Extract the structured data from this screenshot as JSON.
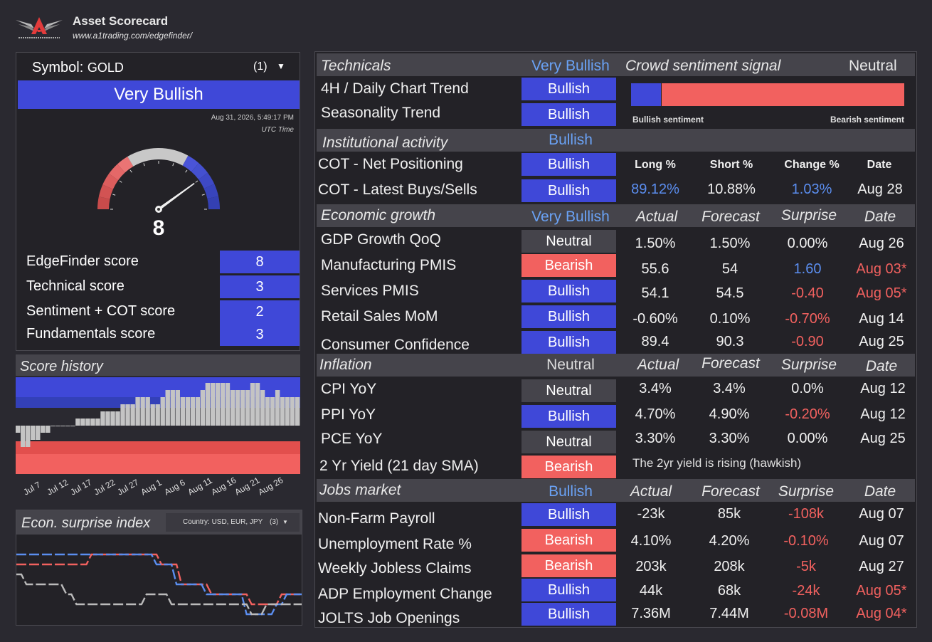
{
  "header": {
    "title": "Asset Scorecard",
    "url": "www.a1trading.com/edgefinder/"
  },
  "symbol": {
    "label": "Symbol:",
    "value": "GOLD",
    "count": "(1)",
    "overall": "Very Bullish",
    "timestamp": "Aug 31, 2026, 5:49:17 PM",
    "timezone": "UTC Time",
    "gauge_value": "8",
    "gauge_min": 0,
    "gauge_max": 10,
    "scores": [
      {
        "label": "EdgeFinder score",
        "value": "8"
      },
      {
        "label": "Technical score",
        "value": "3"
      },
      {
        "label": "Sentiment + COT score",
        "value": "2"
      },
      {
        "label": "Fundamentals score",
        "value": "3"
      }
    ]
  },
  "score_history": {
    "title": "Score history",
    "dates": [
      "Jul 7",
      "Jul 12",
      "Jul 17",
      "Jul 22",
      "Jul 27",
      "Aug 1",
      "Aug 6",
      "Aug 11",
      "Aug 16",
      "Aug 21",
      "Aug 26"
    ],
    "values": [
      -1,
      -3,
      -3,
      -2,
      -2,
      -1,
      -1,
      0,
      0,
      0,
      0,
      0,
      1,
      1,
      1,
      1,
      1,
      2,
      2,
      2,
      2,
      3,
      3,
      3,
      4,
      4,
      4,
      3,
      3,
      4,
      5,
      5,
      5,
      4,
      4,
      4,
      4,
      5,
      6,
      6,
      6,
      6,
      6,
      5,
      5,
      5,
      5,
      6,
      6,
      5,
      4,
      4,
      5,
      4,
      4,
      4,
      4
    ]
  },
  "econ_surprise": {
    "title": "Econ. surprise index",
    "country_label": "Country: USD, EUR, JPY",
    "country_count": "(3)",
    "series": [
      {
        "color": "#f2615f",
        "values": [
          5,
          5,
          5,
          5,
          5,
          5,
          5,
          5,
          5,
          5,
          5,
          5,
          5,
          5,
          5,
          6,
          6,
          6,
          6,
          6,
          6,
          6,
          6,
          6,
          6,
          6,
          6,
          6,
          6,
          5,
          5,
          5,
          5,
          3,
          3,
          3,
          3,
          3,
          3,
          2,
          2,
          2,
          2,
          2,
          2,
          2,
          2,
          1,
          1,
          1,
          1,
          1,
          1,
          2,
          2,
          2,
          2,
          2
        ]
      },
      {
        "color": "#5b8ef0",
        "values": [
          6,
          6,
          6,
          6,
          6,
          6,
          6,
          6,
          6,
          6,
          6,
          6,
          6,
          6,
          6,
          6,
          6,
          6,
          6,
          6,
          6,
          6,
          6,
          6,
          6,
          6,
          6,
          6,
          5,
          5,
          5,
          5,
          3,
          3,
          3,
          3,
          3,
          3,
          2,
          2,
          2,
          2,
          2,
          2,
          2,
          2,
          0,
          0,
          0,
          0,
          0,
          0,
          1,
          1,
          2,
          2,
          2,
          2
        ]
      },
      {
        "color": "#bbbbbb",
        "values": [
          4,
          4,
          3,
          3,
          3,
          3,
          3,
          3,
          3,
          3,
          2,
          2,
          1,
          1,
          1,
          1,
          1,
          1,
          1,
          1,
          1,
          1,
          1,
          1,
          1,
          1,
          2,
          2,
          2,
          2,
          2,
          1,
          1,
          1,
          1,
          1,
          1,
          1,
          1,
          1,
          1,
          1,
          1,
          1,
          1,
          1,
          1,
          0,
          0,
          0,
          1,
          1,
          1,
          1,
          1,
          1,
          1,
          1
        ]
      }
    ]
  },
  "technicals": {
    "title": "Technicals",
    "bias": "Very Bullish",
    "rows": [
      {
        "label": "4H / Daily Chart Trend",
        "bias": "Bullish"
      },
      {
        "label": "Seasonality Trend",
        "bias": "Bullish"
      }
    ],
    "crowd": {
      "title": "Crowd sentiment signal",
      "value": "Neutral",
      "bullish_label": "Bullish sentiment",
      "bearish_label": "Bearish sentiment",
      "bullish_fraction": 0.1088
    }
  },
  "institutional": {
    "title": "Institutional activity",
    "bias": "Bullish",
    "headers": [
      "Long %",
      "Short %",
      "Change %",
      "Date"
    ],
    "values": {
      "long": "89.12%",
      "short": "10.88%",
      "change": "1.03%",
      "date": "Aug 28"
    },
    "rows": [
      {
        "label": "COT - Net Positioning",
        "bias": "Bullish"
      },
      {
        "label": "COT - Latest Buys/Sells",
        "bias": "Bullish"
      }
    ]
  },
  "economic": {
    "title": "Economic growth",
    "bias": "Very Bullish",
    "headers": [
      "Actual",
      "Forecast",
      "Surprise",
      "Date"
    ],
    "rows": [
      {
        "label": "GDP Growth QoQ",
        "bias": "Neutral",
        "actual": "1.50%",
        "forecast": "1.50%",
        "surprise": "0.00%",
        "date": "Aug 26"
      },
      {
        "label": "Manufacturing PMIS",
        "bias": "Bearish",
        "actual": "55.6",
        "forecast": "54",
        "surprise": "1.60",
        "date": "Aug 03*"
      },
      {
        "label": "Services PMIS",
        "bias": "Bullish",
        "actual": "54.1",
        "forecast": "54.5",
        "surprise": "-0.40",
        "date": "Aug 05*"
      },
      {
        "label": "Retail Sales MoM",
        "bias": "Bullish",
        "actual": "-0.60%",
        "forecast": "0.10%",
        "surprise": "-0.70%",
        "date": "Aug 14"
      },
      {
        "label": "Consumer Confidence",
        "bias": "Bullish",
        "actual": "89.4",
        "forecast": "90.3",
        "surprise": "-0.90",
        "date": "Aug 25"
      }
    ]
  },
  "inflation": {
    "title": "Inflation",
    "bias": "Neutral",
    "headers": [
      "Actual",
      "Forecast",
      "Surprise",
      "Date"
    ],
    "rows": [
      {
        "label": "CPI YoY",
        "bias": "Neutral",
        "actual": "3.4%",
        "forecast": "3.4%",
        "surprise": "0.0%",
        "date": "Aug 12"
      },
      {
        "label": "PPI YoY",
        "bias": "Bullish",
        "actual": "4.70%",
        "forecast": "4.90%",
        "surprise": "-0.20%",
        "date": "Aug 12"
      },
      {
        "label": "PCE YoY",
        "bias": "Neutral",
        "actual": "3.30%",
        "forecast": "3.30%",
        "surprise": "0.00%",
        "date": "Aug 25"
      }
    ],
    "yield": {
      "label": "2 Yr Yield (21 day SMA)",
      "bias": "Bearish",
      "note": "The 2yr yield is rising (hawkish)"
    }
  },
  "jobs": {
    "title": "Jobs market",
    "bias": "Bullish",
    "headers": [
      "Actual",
      "Forecast",
      "Surprise",
      "Date"
    ],
    "rows": [
      {
        "label": "Non-Farm Payroll",
        "bias": "Bullish",
        "actual": "-23k",
        "forecast": "85k",
        "surprise": "-108k",
        "date": "Aug 07"
      },
      {
        "label": "Unemployment Rate %",
        "bias": "Bearish",
        "actual": "4.10%",
        "forecast": "4.20%",
        "surprise": "-0.10%",
        "date": "Aug 07"
      },
      {
        "label": "Weekly Jobless Claims",
        "bias": "Bearish",
        "actual": "203k",
        "forecast": "208k",
        "surprise": "-5k",
        "date": "Aug 27"
      },
      {
        "label": "ADP Employment Change",
        "bias": "Bullish",
        "actual": "44k",
        "forecast": "68k",
        "surprise": "-24k",
        "date": "Aug 05*"
      },
      {
        "label": "JOLTS Job Openings",
        "bias": "Bullish",
        "actual": "7.36M",
        "forecast": "7.44M",
        "surprise": "-0.08M",
        "date": "Aug 04*"
      }
    ]
  },
  "colors": {
    "bullish": "#3f48d8",
    "bearish": "#f2615f",
    "neutral": "#45444b",
    "accent_blue": "#5b8ef0"
  }
}
